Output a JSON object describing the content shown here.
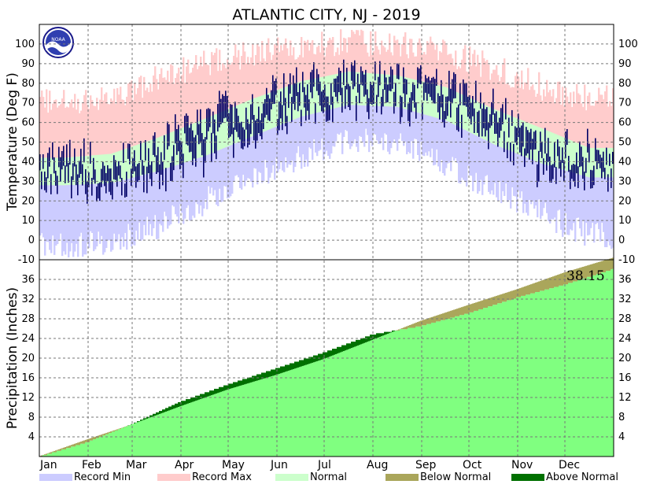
{
  "chart_data": {
    "type": "area",
    "title": "ATLANTIC CITY, NJ - 2019",
    "year": 2019,
    "months": [
      "Jan",
      "Feb",
      "Mar",
      "Apr",
      "May",
      "Jun",
      "Jul",
      "Aug",
      "Sep",
      "Oct",
      "Nov",
      "Dec"
    ],
    "logo_text": "NOAA",
    "temperature": {
      "ylabel": "Temperature (Deg F)",
      "ylim": [
        -10,
        110
      ],
      "yticks": [
        -10,
        0,
        10,
        20,
        30,
        40,
        50,
        60,
        70,
        80,
        90,
        100
      ],
      "grid": true,
      "normal_high": [
        42,
        44,
        52,
        62,
        72,
        81,
        86,
        84,
        78,
        67,
        57,
        47
      ],
      "normal_low": [
        28,
        29,
        35,
        43,
        53,
        63,
        69,
        68,
        61,
        49,
        39,
        32
      ],
      "record_max": [
        70,
        73,
        82,
        90,
        95,
        99,
        101,
        100,
        96,
        88,
        78,
        72
      ],
      "record_min": [
        -3,
        -2,
        7,
        20,
        32,
        42,
        52,
        49,
        38,
        26,
        13,
        2
      ],
      "observed_high": [
        44,
        40,
        47,
        64,
        71,
        80,
        85,
        84,
        79,
        68,
        52,
        46
      ],
      "observed_low": [
        30,
        25,
        32,
        43,
        54,
        63,
        70,
        69,
        62,
        52,
        35,
        33
      ]
    },
    "precipitation": {
      "ylabel": "Precipitation (Inches)",
      "ylim": [
        0,
        40
      ],
      "yticks": [
        4,
        8,
        12,
        16,
        20,
        24,
        28,
        32,
        36
      ],
      "grid": true,
      "normal_cumulative": [
        0,
        3.5,
        6.5,
        10.2,
        13.6,
        16.6,
        19.8,
        23.7,
        27.6,
        30.8,
        34.0,
        37.4,
        40.4
      ],
      "observed_cumulative": [
        0,
        3.0,
        6.6,
        11.2,
        14.7,
        18.0,
        21.2,
        24.9,
        26.6,
        29.2,
        32.4,
        35.0,
        38.15
      ],
      "total_label": "38.15"
    },
    "legend": [
      {
        "label": "Record Min",
        "color": "#ccccff"
      },
      {
        "label": "Record Max",
        "color": "#ffcccc"
      },
      {
        "label": "Normal",
        "color": "#ccffcc"
      },
      {
        "label": "Below Normal",
        "color": "#aaa65b"
      },
      {
        "label": "Above Normal",
        "color": "#007000"
      }
    ],
    "colors": {
      "observed": "#000066",
      "precip_normal_fill": "#80ff80"
    }
  }
}
